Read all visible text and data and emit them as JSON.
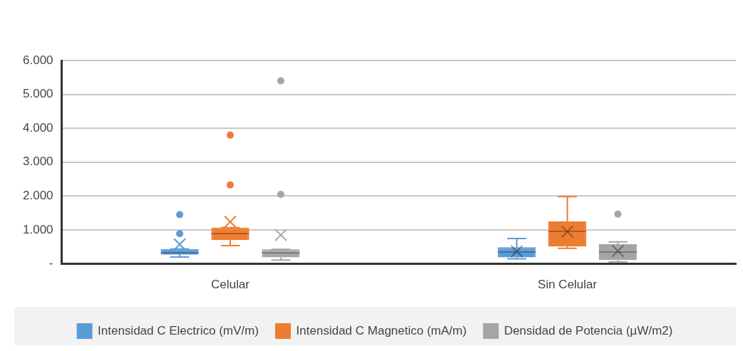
{
  "chart_data": {
    "type": "box",
    "categories": [
      "Celular",
      "Sin Celular"
    ],
    "ylim": [
      0,
      6000
    ],
    "yticks": [
      {
        "value": 0,
        "label": "-"
      },
      {
        "value": 1000,
        "label": "1.000"
      },
      {
        "value": 2000,
        "label": "2.000"
      },
      {
        "value": 3000,
        "label": "3.000"
      },
      {
        "value": 4000,
        "label": "4.000"
      },
      {
        "value": 5000,
        "label": "5.000"
      },
      {
        "value": 6000,
        "label": "6.000"
      }
    ],
    "grid": "y",
    "legend": "bottom",
    "series": [
      {
        "name": "Intensidad C Electrico (mV/m)",
        "color": "#5b9bd5",
        "boxes": [
          {
            "low": 200,
            "q1": 270,
            "median": 330,
            "q3": 440,
            "high": 440,
            "mean": 575,
            "outliers": [
              890,
              1450
            ]
          },
          {
            "low": 150,
            "q1": 190,
            "median": 350,
            "q3": 490,
            "high": 750,
            "mean": 370
          }
        ]
      },
      {
        "name": "Intensidad C Magnetico (mA/m)",
        "color": "#ed7d31",
        "boxes": [
          {
            "low": 540,
            "q1": 700,
            "median": 890,
            "q3": 1070,
            "high": 1070,
            "mean": 1240,
            "outliers": [
              2330,
              3800
            ]
          },
          {
            "low": 460,
            "q1": 510,
            "median": 960,
            "q3": 1250,
            "high": 1980,
            "mean": 950
          }
        ]
      },
      {
        "name": "Densidad de Potencia (µW/m2)",
        "color": "#a5a5a5",
        "boxes": [
          {
            "low": 110,
            "q1": 190,
            "median": 320,
            "q3": 430,
            "high": 430,
            "mean": 850,
            "outliers": [
              2050,
              5400
            ]
          },
          {
            "low": 60,
            "q1": 110,
            "median": 350,
            "q3": 580,
            "high": 650,
            "mean": 380,
            "outliers": [
              1470
            ]
          }
        ]
      }
    ]
  }
}
